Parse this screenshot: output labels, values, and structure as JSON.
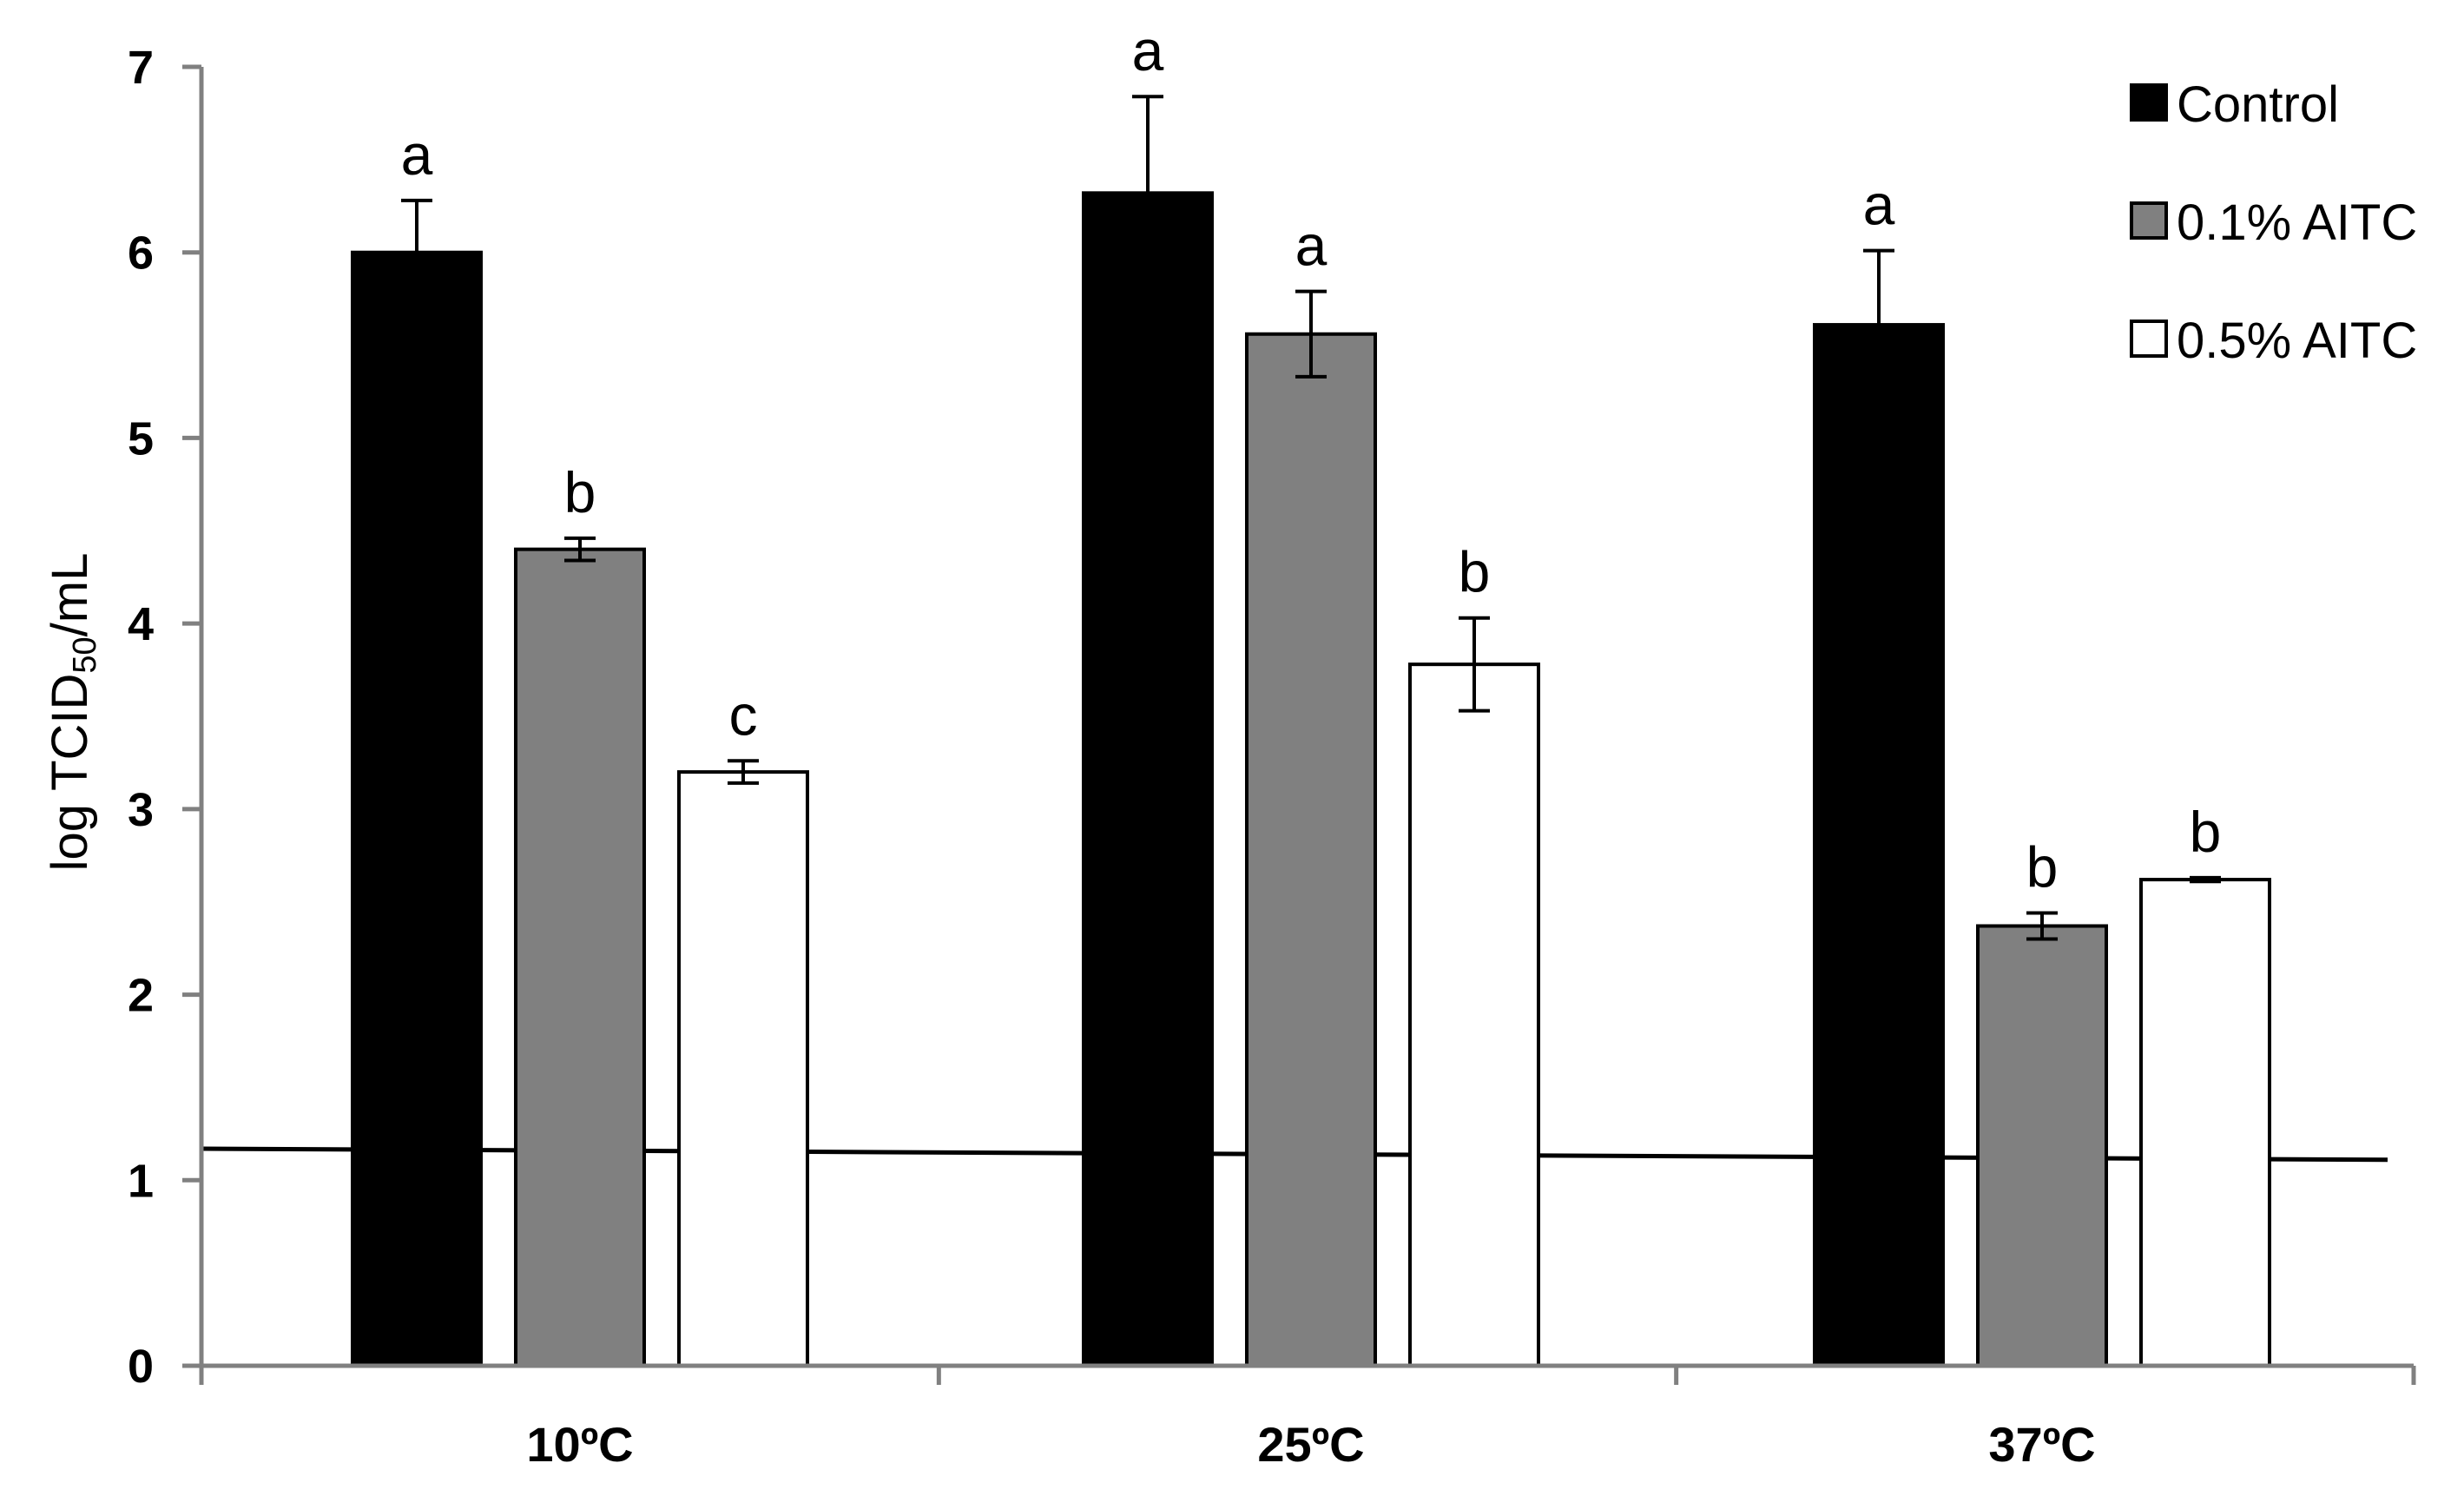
{
  "chart_data": {
    "type": "bar",
    "title": "",
    "xlabel": "",
    "ylabel": {
      "prefix": "log TCID",
      "subscript": "50",
      "suffix": "/mL"
    },
    "ylim": [
      0,
      7
    ],
    "yticks": [
      0,
      1,
      2,
      3,
      4,
      5,
      6,
      7
    ],
    "categories": [
      "10ºC",
      "25ºC",
      "37ºC"
    ],
    "legend_position": "top-right",
    "reference_line": {
      "y_start": 1.17,
      "y_end": 1.11
    },
    "series": [
      {
        "name": "Control",
        "color": "#000000",
        "values": [
          6.0,
          6.32,
          5.61
        ],
        "errors": [
          0.28,
          0.52,
          0.4
        ],
        "significance": [
          "a",
          "a",
          "a"
        ]
      },
      {
        "name": "0.1% AITC",
        "color": "#808080",
        "values": [
          4.4,
          5.56,
          2.37
        ],
        "errors": [
          0.06,
          0.23,
          0.07
        ],
        "significance": [
          "b",
          "a",
          "b"
        ]
      },
      {
        "name": "0.5% AITC",
        "color": "#ffffff",
        "values": [
          3.2,
          3.78,
          2.62
        ],
        "errors": [
          0.06,
          0.25,
          0.01
        ],
        "significance": [
          "c",
          "b",
          "b"
        ]
      }
    ]
  }
}
